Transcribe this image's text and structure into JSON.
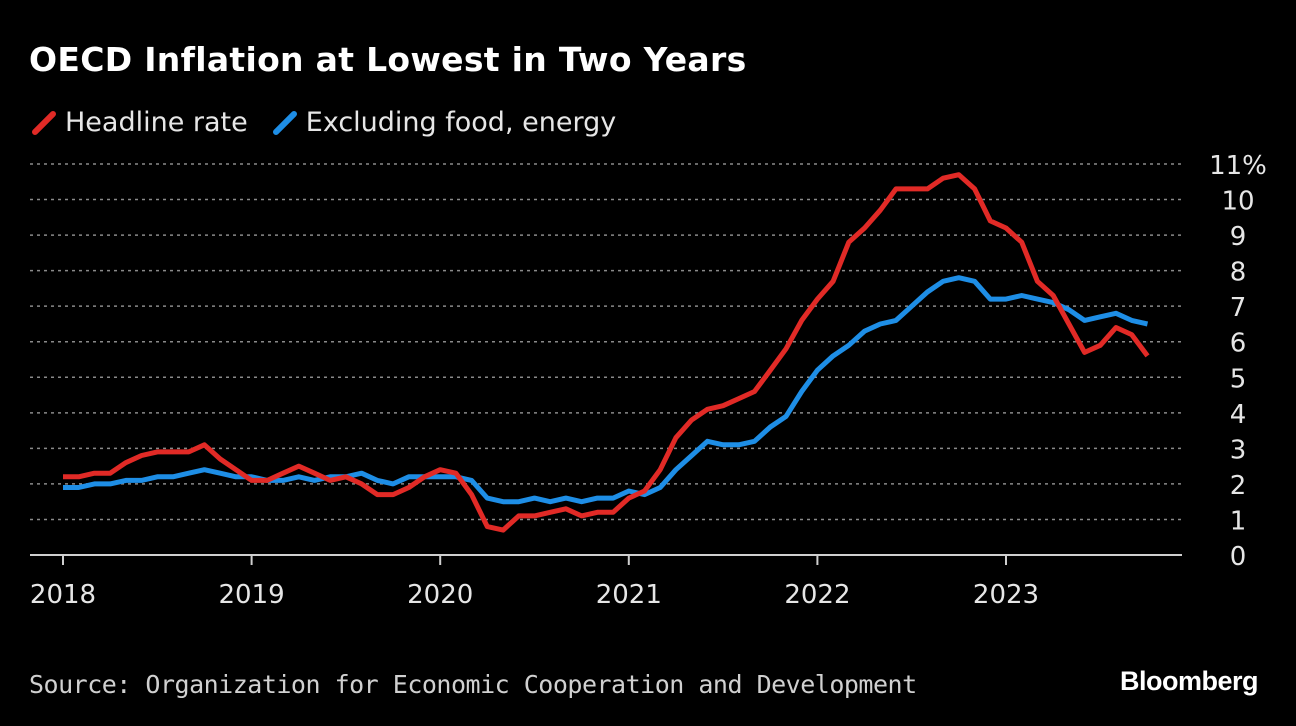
{
  "title": "OECD Inflation at Lowest in Two Years",
  "source": "Source: Organization for Economic Cooperation and Development",
  "brand": "Bloomberg",
  "colors": {
    "headline": "#e12a26",
    "core": "#1e8ee6",
    "grid": "#8a8a8a",
    "axis": "#cfcfcf"
  },
  "chart_data": {
    "type": "line",
    "ylim": [
      0,
      11
    ],
    "y_ticks": [
      0,
      1,
      2,
      3,
      4,
      5,
      6,
      7,
      8,
      9,
      10,
      11
    ],
    "y_tick_labels": [
      "0",
      "1",
      "2",
      "3",
      "4",
      "5",
      "6",
      "7",
      "8",
      "9",
      "10",
      "11%"
    ],
    "x_tick_labels": [
      "2018",
      "2019",
      "2020",
      "2021",
      "2022",
      "2023"
    ],
    "x_tick_years": [
      2018,
      2019,
      2020,
      2021,
      2022,
      2023
    ],
    "x_start": "2018-01",
    "legend_position": "top-left",
    "grid": true,
    "series": [
      {
        "name": "Headline rate",
        "color_key": "headline",
        "values": [
          2.2,
          2.2,
          2.3,
          2.3,
          2.6,
          2.8,
          2.9,
          2.9,
          2.9,
          3.1,
          2.7,
          2.4,
          2.1,
          2.1,
          2.3,
          2.5,
          2.3,
          2.1,
          2.2,
          2.0,
          1.7,
          1.7,
          1.9,
          2.2,
          2.4,
          2.3,
          1.7,
          0.8,
          0.7,
          1.1,
          1.1,
          1.2,
          1.3,
          1.1,
          1.2,
          1.2,
          1.6,
          1.8,
          2.4,
          3.3,
          3.8,
          4.1,
          4.2,
          4.4,
          4.6,
          5.2,
          5.8,
          6.6,
          7.2,
          7.7,
          8.8,
          9.2,
          9.7,
          10.3,
          10.3,
          10.3,
          10.6,
          10.7,
          10.3,
          9.4,
          9.2,
          8.8,
          7.7,
          7.3,
          6.5,
          5.7,
          5.9,
          6.4,
          6.2,
          5.6
        ]
      },
      {
        "name": "Excluding food, energy",
        "color_key": "core",
        "values": [
          1.9,
          1.9,
          2.0,
          2.0,
          2.1,
          2.1,
          2.2,
          2.2,
          2.3,
          2.4,
          2.3,
          2.2,
          2.2,
          2.1,
          2.1,
          2.2,
          2.1,
          2.2,
          2.2,
          2.3,
          2.1,
          2.0,
          2.2,
          2.2,
          2.2,
          2.2,
          2.1,
          1.6,
          1.5,
          1.5,
          1.6,
          1.5,
          1.6,
          1.5,
          1.6,
          1.6,
          1.8,
          1.7,
          1.9,
          2.4,
          2.8,
          3.2,
          3.1,
          3.1,
          3.2,
          3.6,
          3.9,
          4.6,
          5.2,
          5.6,
          5.9,
          6.3,
          6.5,
          6.6,
          7.0,
          7.4,
          7.7,
          7.8,
          7.7,
          7.2,
          7.2,
          7.3,
          7.2,
          7.1,
          6.9,
          6.6,
          6.7,
          6.8,
          6.6,
          6.5
        ]
      }
    ]
  }
}
